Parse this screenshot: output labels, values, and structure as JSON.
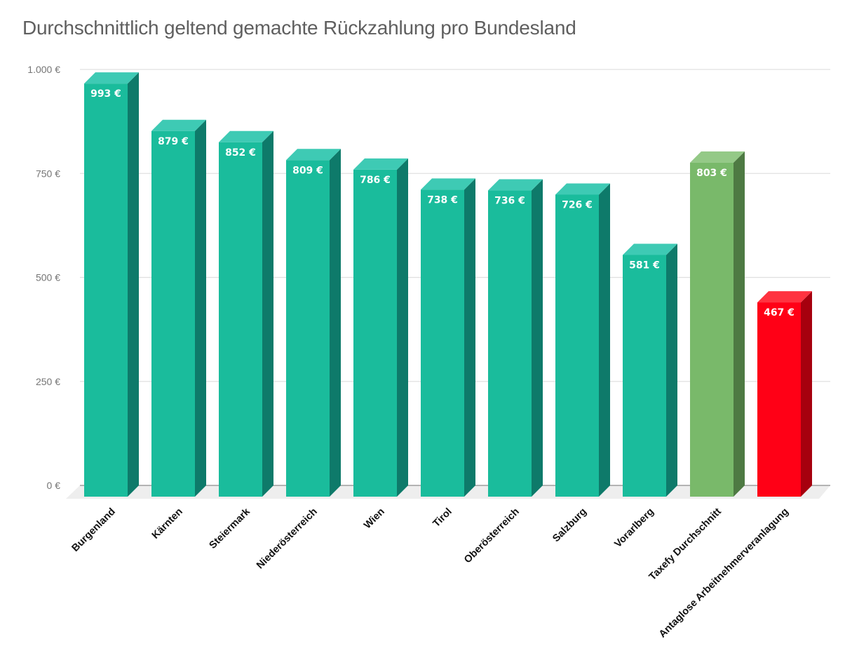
{
  "chart_data": {
    "type": "bar",
    "title": "Durchschnittlich geltend gemachte Rückzahlung pro Bundesland",
    "xlabel": "",
    "ylabel": "",
    "ylim": [
      0,
      1000
    ],
    "yticks": [
      0,
      250,
      500,
      750,
      1000
    ],
    "ytick_labels": [
      "0 €",
      "250 €",
      "500 €",
      "750 €",
      "1.000 €"
    ],
    "grid": true,
    "legend": null,
    "style": "3d-bars",
    "categories": [
      "Burgenland",
      "Kärnten",
      "Steiermark",
      "Niederösterreich",
      "Wien",
      "Tirol",
      "Oberösterreich",
      "Salzburg",
      "Vorarlberg",
      "Taxefy Durchschnitt",
      "Antaglose Arbeitnehmerveranlagung"
    ],
    "values": [
      993,
      879,
      852,
      809,
      786,
      738,
      736,
      726,
      581,
      803,
      467
    ],
    "value_labels": [
      "993 €",
      "879 €",
      "852 €",
      "809 €",
      "786 €",
      "738 €",
      "736 €",
      "726 €",
      "581 €",
      "803 €",
      "467 €"
    ],
    "bar_colors": [
      "#1abc9c",
      "#1abc9c",
      "#1abc9c",
      "#1abc9c",
      "#1abc9c",
      "#1abc9c",
      "#1abc9c",
      "#1abc9c",
      "#1abc9c",
      "#79b96a",
      "#ff0016"
    ]
  },
  "colors": {
    "teal_front": "#1abc9c",
    "teal_top": "#3ecab4",
    "teal_side": "#0e7a6a",
    "green_front": "#79b96a",
    "green_top": "#94c987",
    "green_side": "#4e7a43",
    "red_front": "#ff0016",
    "red_top": "#ff3340",
    "red_side": "#a6000e",
    "grid": "#e0e0e0",
    "axis": "#9e9e9e",
    "floor": "#eeeeee"
  }
}
